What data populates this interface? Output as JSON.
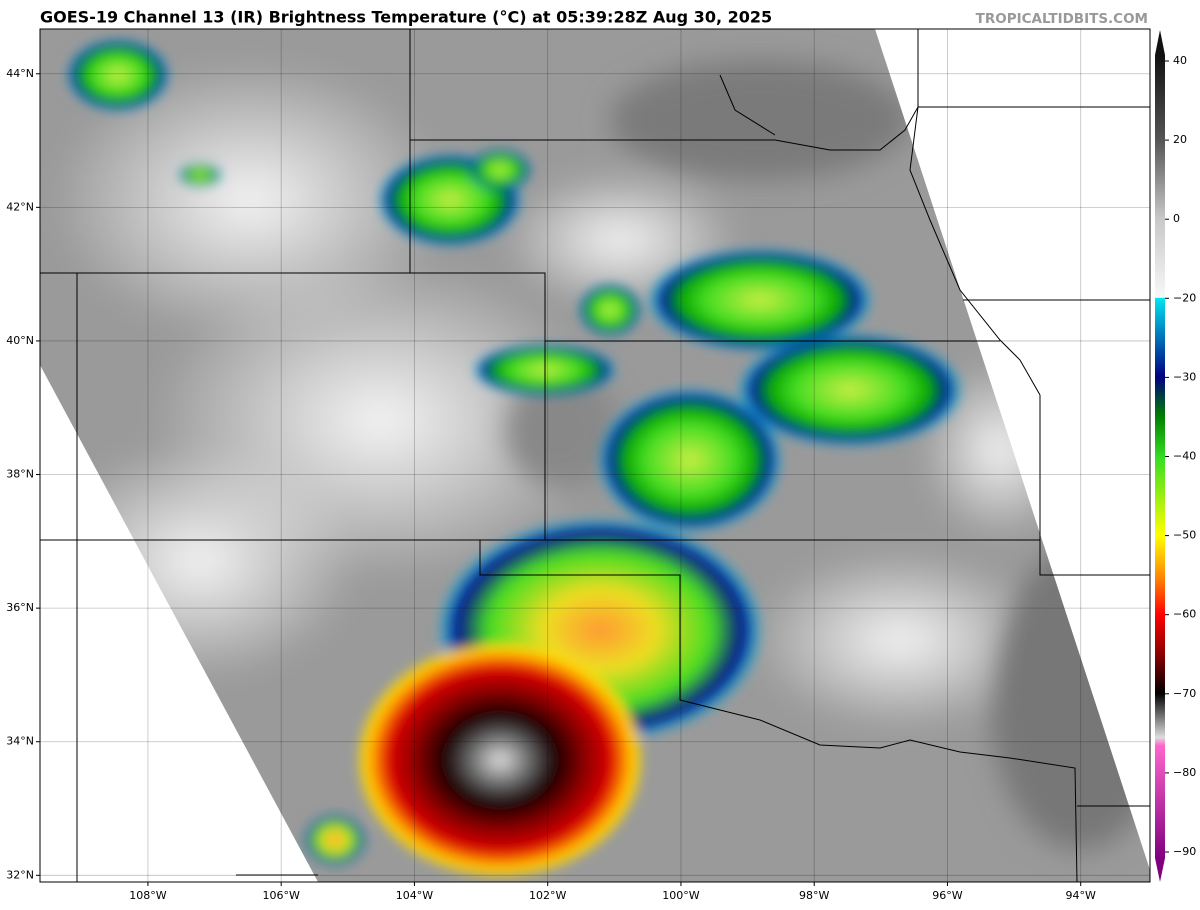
{
  "map": {
    "title": "GOES-19 Channel 13 (IR) Brightness Temperature (°C) at 05:39:28Z Aug 30, 2025",
    "credit": "TROPICALTIDBITS.COM",
    "xlim": [
      -109.62,
      -92.96
    ],
    "ylim": [
      31.9,
      44.67
    ],
    "grid": true,
    "xticks": [
      {
        "value": -108,
        "label": "108°W"
      },
      {
        "value": -106,
        "label": "106°W"
      },
      {
        "value": -104,
        "label": "104°W"
      },
      {
        "value": -102,
        "label": "102°W"
      },
      {
        "value": -100,
        "label": "100°W"
      },
      {
        "value": -98,
        "label": "98°W"
      },
      {
        "value": -96,
        "label": "96°W"
      },
      {
        "value": -94,
        "label": "94°W"
      }
    ],
    "yticks": [
      {
        "value": 32,
        "label": "32°N"
      },
      {
        "value": 34,
        "label": "34°N"
      },
      {
        "value": 36,
        "label": "36°N"
      },
      {
        "value": 38,
        "label": "38°N"
      },
      {
        "value": 40,
        "label": "40°N"
      },
      {
        "value": 42,
        "label": "42°N"
      },
      {
        "value": 44,
        "label": "44°N"
      }
    ],
    "colorbar": {
      "ticks": [
        40,
        20,
        0,
        {
          "value": -20,
          "label": "−20"
        },
        {
          "value": -30,
          "label": "−30"
        },
        {
          "value": -40,
          "label": "−40"
        },
        {
          "value": -50,
          "label": "−50"
        },
        {
          "value": -60,
          "label": "−60"
        },
        {
          "value": -70,
          "label": "−70"
        },
        {
          "value": -80,
          "label": "−80"
        },
        {
          "value": -90,
          "label": "−90"
        }
      ]
    }
  }
}
